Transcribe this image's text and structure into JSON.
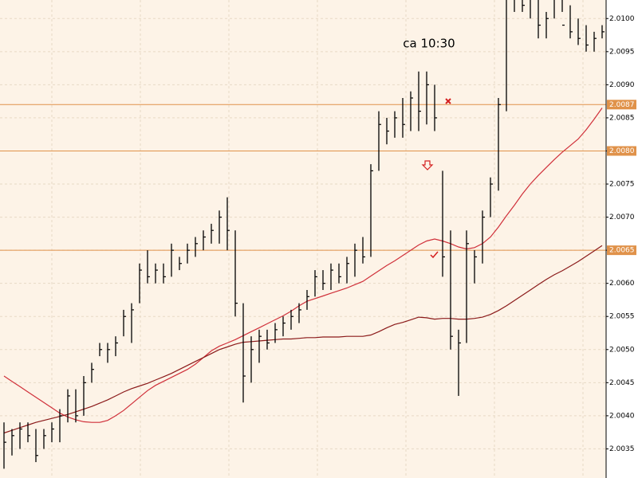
{
  "chart_data": {
    "type": "ohlc",
    "annotation": "ca 10:30",
    "ylim": [
      2.00306,
      2.01028
    ],
    "yticks": [
      2.0035,
      {
        "value": 2.004,
        "label": "2.0040"
      },
      2.0045,
      {
        "value": 2.005,
        "label": "2.0050"
      },
      2.0055,
      {
        "value": 2.006,
        "label": "2.0060"
      },
      2.0065,
      {
        "value": 2.007,
        "label": "2.0070"
      },
      2.0075,
      {
        "value": 2.008,
        "label": "2.0080"
      },
      2.0085,
      {
        "value": 2.009,
        "label": "2.0090"
      },
      2.0095,
      {
        "value": 2.01,
        "label": "2.0100"
      }
    ],
    "grid": true,
    "bar_color": "#000000",
    "level_color": "#e0924a",
    "levels": [
      2.0087,
      {
        "value": 2.008,
        "label": "2.0080"
      },
      2.0065
    ],
    "high": [
      2.0039,
      2.0038,
      2.0039,
      2.0039,
      2.0038,
      2.0038,
      2.0039,
      2.0041,
      2.0044,
      2.0044,
      2.0046,
      2.0048,
      2.0051,
      2.0051,
      2.0052,
      2.0056,
      2.0057,
      2.0063,
      2.0065,
      2.0063,
      2.0063,
      2.0066,
      2.0064,
      2.0066,
      2.0067,
      2.0068,
      2.0069,
      2.0071,
      2.0073,
      2.0068,
      2.0057,
      2.0052,
      2.0053,
      2.0053,
      2.0054,
      2.0055,
      2.0056,
      2.0057,
      2.0059,
      2.0062,
      2.0062,
      2.0063,
      2.0063,
      2.0064,
      2.0066,
      2.0067,
      2.0078,
      2.0086,
      2.0085,
      2.0086,
      2.0088,
      2.0089,
      2.0092,
      2.0092,
      2.009,
      2.0077,
      2.0068,
      2.0053,
      2.0068,
      2.0065,
      2.0071,
      2.0076,
      2.0088,
      2.0104,
      2.0106,
      2.0106,
      2.0105,
      2.0103,
      2.0101,
      2.0105,
      2.0106,
      2.0102,
      2.01,
      2.0099,
      2.0098,
      2.0099
    ],
    "low": [
      2.0032,
      2.0034,
      2.0035,
      2.0036,
      2.0033,
      2.0035,
      2.0036,
      2.0036,
      2.0039,
      2.0039,
      2.004,
      2.0045,
      2.0049,
      2.0048,
      2.0049,
      2.0052,
      2.0051,
      2.0057,
      2.006,
      2.006,
      2.006,
      2.0061,
      2.0062,
      2.0063,
      2.0064,
      2.0065,
      2.0066,
      2.0066,
      2.0065,
      2.0055,
      2.0042,
      2.0045,
      2.0048,
      2.005,
      2.0051,
      2.0052,
      2.0053,
      2.0054,
      2.0056,
      2.0058,
      2.0059,
      2.0059,
      2.006,
      2.006,
      2.0061,
      2.0063,
      2.0064,
      2.0077,
      2.0081,
      2.0082,
      2.0082,
      2.0083,
      2.0083,
      2.0084,
      2.0083,
      2.0061,
      2.005,
      2.0043,
      2.0051,
      2.006,
      2.0063,
      2.007,
      2.0074,
      2.0086,
      2.0101,
      2.0101,
      2.01,
      2.0097,
      2.0097,
      2.01,
      2.0101,
      2.0097,
      2.0096,
      2.0095,
      2.0095,
      2.0097
    ],
    "close": [
      2.0036,
      2.0037,
      2.0038,
      2.0037,
      2.0034,
      2.0037,
      2.0038,
      2.004,
      2.0043,
      2.004,
      2.0045,
      2.0047,
      2.005,
      2.005,
      2.0051,
      2.0055,
      2.0056,
      2.0062,
      2.0061,
      2.0062,
      2.0061,
      2.0065,
      2.0063,
      2.0065,
      2.0066,
      2.0067,
      2.0068,
      2.007,
      2.0068,
      2.0057,
      2.0046,
      2.005,
      2.0052,
      2.0051,
      2.0053,
      2.0054,
      2.0055,
      2.0056,
      2.0058,
      2.0061,
      2.006,
      2.0062,
      2.0061,
      2.0063,
      2.0065,
      2.0064,
      2.0077,
      2.0084,
      2.0083,
      2.0085,
      2.0084,
      2.0088,
      2.0086,
      2.009,
      2.0085,
      2.0064,
      2.0052,
      2.0051,
      2.0066,
      2.0064,
      2.007,
      2.0075,
      2.0087,
      2.0103,
      2.0104,
      2.0102,
      2.0103,
      2.0099,
      2.01,
      2.0104,
      2.0099,
      2.0098,
      2.0097,
      2.0096,
      2.0097,
      2.0098
    ],
    "moving_averages": [
      {
        "color": "#d0303a",
        "values": [
          2.0046,
          2.00452,
          2.00444,
          2.00436,
          2.00428,
          2.0042,
          2.00412,
          2.00404,
          2.00398,
          2.00394,
          2.00391,
          2.0039,
          2.0039,
          2.00393,
          2.004,
          2.00408,
          2.00418,
          2.00428,
          2.00438,
          2.00446,
          2.00452,
          2.00458,
          2.00464,
          2.0047,
          2.00478,
          2.00488,
          2.00498,
          2.00505,
          2.0051,
          2.00515,
          2.00521,
          2.00527,
          2.00533,
          2.00539,
          2.00545,
          2.00551,
          2.00558,
          2.00566,
          2.00573,
          2.00577,
          2.00581,
          2.00585,
          2.00589,
          2.00593,
          2.00598,
          2.00603,
          2.00611,
          2.00619,
          2.00627,
          2.00634,
          2.00642,
          2.0065,
          2.00658,
          2.00664,
          2.00667,
          2.00664,
          2.0066,
          2.00655,
          2.00652,
          2.00654,
          2.0066,
          2.0067,
          2.00685,
          2.00702,
          2.00718,
          2.00735,
          2.0075,
          2.00763,
          2.00775,
          2.00787,
          2.00798,
          2.00808,
          2.00818,
          2.00832,
          2.00848,
          2.00865
        ]
      },
      {
        "color": "#8b1a1a",
        "values": [
          2.00374,
          2.00378,
          2.00382,
          2.00386,
          2.0039,
          2.00393,
          2.00396,
          2.00399,
          2.00402,
          2.00406,
          2.0041,
          2.00414,
          2.00419,
          2.00424,
          2.0043,
          2.00436,
          2.00441,
          2.00445,
          2.00449,
          2.00454,
          2.00459,
          2.00464,
          2.0047,
          2.00476,
          2.00482,
          2.00488,
          2.00494,
          2.005,
          2.00504,
          2.00508,
          2.00511,
          2.00512,
          2.00513,
          2.00514,
          2.00515,
          2.00516,
          2.00516,
          2.00517,
          2.00518,
          2.00518,
          2.00519,
          2.00519,
          2.00519,
          2.0052,
          2.0052,
          2.0052,
          2.00522,
          2.00527,
          2.00533,
          2.00538,
          2.00541,
          2.00545,
          2.00549,
          2.00548,
          2.00546,
          2.00547,
          2.00547,
          2.00546,
          2.00546,
          2.00547,
          2.00549,
          2.00553,
          2.00559,
          2.00566,
          2.00574,
          2.00582,
          2.0059,
          2.00598,
          2.00606,
          2.00613,
          2.00619,
          2.00626,
          2.00633,
          2.00641,
          2.00649,
          2.00657
        ]
      }
    ]
  }
}
